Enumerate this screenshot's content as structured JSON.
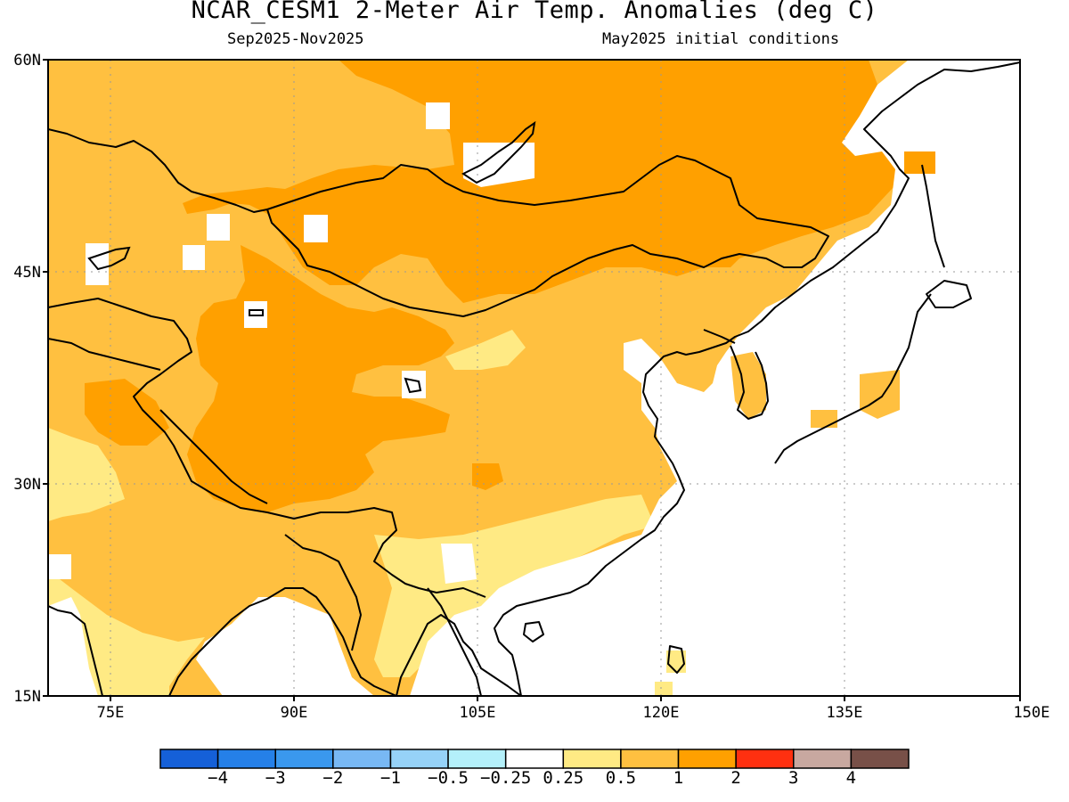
{
  "title": "NCAR_CESM1 2-Meter Air Temp. Anomalies (deg C)",
  "subtitle_left": "Sep2025-Nov2025",
  "subtitle_right": "May2025 initial conditions",
  "lat_labels": [
    "60N",
    "45N",
    "30N",
    "15N"
  ],
  "lon_labels": [
    "75E",
    "90E",
    "105E",
    "120E",
    "135E",
    "150E"
  ],
  "colorbar": {
    "colors": [
      "#1560d8",
      "#2580e8",
      "#3a98ee",
      "#78b8f4",
      "#96d2f8",
      "#b4f0fa",
      "#ffffff",
      "#ffea84",
      "#ffc040",
      "#ffa000",
      "#ff3010",
      "#c8a8a0",
      "#785048"
    ],
    "labels": [
      "-4",
      "-3",
      "-2",
      "-1",
      "-0.5",
      "-0.25",
      "0.25",
      "0.5",
      "1",
      "2",
      "3",
      "4"
    ]
  },
  "map_colors": {
    "c05_1": "#ffc040",
    "c1_2": "#ffa000",
    "c025_05": "#ffea84",
    "ocean": "#ffffff",
    "coast": "#000000"
  }
}
